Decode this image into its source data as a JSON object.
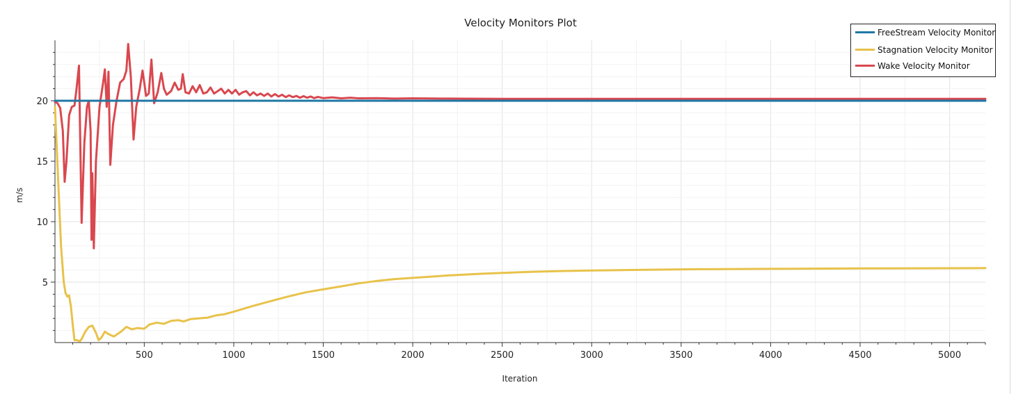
{
  "chart_data": {
    "type": "line",
    "title": "Velocity Monitors Plot",
    "xlabel": "Iteration",
    "ylabel": "m/s",
    "xlim": [
      1,
      5200
    ],
    "ylim": [
      0,
      25
    ],
    "xticks": [
      500,
      1000,
      1500,
      2000,
      2500,
      3000,
      3500,
      4000,
      4500,
      5000
    ],
    "yticks": [
      5,
      10,
      15,
      20
    ],
    "grid": true,
    "legend_position": "top-right",
    "series": [
      {
        "name": "FreeStream Velocity Monitor",
        "color": "#1f77a4",
        "points": [
          [
            1,
            20
          ],
          [
            5200,
            20
          ]
        ]
      },
      {
        "name": "Stagnation Velocity Monitor",
        "color": "#e8c24a",
        "points": [
          [
            1,
            19.5
          ],
          [
            20,
            13
          ],
          [
            35,
            8
          ],
          [
            50,
            5
          ],
          [
            60,
            4.1
          ],
          [
            70,
            3.8
          ],
          [
            80,
            3.9
          ],
          [
            90,
            3
          ],
          [
            100,
            1.5
          ],
          [
            110,
            0.2
          ],
          [
            125,
            0.2
          ],
          [
            140,
            0.1
          ],
          [
            150,
            0.3
          ],
          [
            170,
            0.9
          ],
          [
            190,
            1.3
          ],
          [
            210,
            1.4
          ],
          [
            230,
            0.8
          ],
          [
            245,
            0.2
          ],
          [
            260,
            0.4
          ],
          [
            280,
            0.9
          ],
          [
            300,
            0.7
          ],
          [
            330,
            0.5
          ],
          [
            370,
            0.9
          ],
          [
            400,
            1.3
          ],
          [
            430,
            1.1
          ],
          [
            460,
            1.2
          ],
          [
            500,
            1.15
          ],
          [
            530,
            1.5
          ],
          [
            570,
            1.65
          ],
          [
            610,
            1.55
          ],
          [
            650,
            1.8
          ],
          [
            690,
            1.85
          ],
          [
            720,
            1.75
          ],
          [
            760,
            1.95
          ],
          [
            800,
            2.0
          ],
          [
            850,
            2.05
          ],
          [
            900,
            2.25
          ],
          [
            950,
            2.35
          ],
          [
            1000,
            2.55
          ],
          [
            1100,
            3.0
          ],
          [
            1200,
            3.4
          ],
          [
            1300,
            3.8
          ],
          [
            1400,
            4.15
          ],
          [
            1500,
            4.4
          ],
          [
            1600,
            4.65
          ],
          [
            1700,
            4.9
          ],
          [
            1800,
            5.1
          ],
          [
            1900,
            5.25
          ],
          [
            2000,
            5.35
          ],
          [
            2200,
            5.55
          ],
          [
            2400,
            5.7
          ],
          [
            2600,
            5.82
          ],
          [
            2800,
            5.9
          ],
          [
            3000,
            5.96
          ],
          [
            3300,
            6.02
          ],
          [
            3600,
            6.07
          ],
          [
            4000,
            6.1
          ],
          [
            4500,
            6.13
          ],
          [
            5000,
            6.15
          ],
          [
            5200,
            6.16
          ]
        ]
      },
      {
        "name": "Wake Velocity Monitor",
        "color": "#d9484f",
        "points": [
          [
            1,
            19.9
          ],
          [
            15,
            19.8
          ],
          [
            30,
            19.4
          ],
          [
            45,
            17.5
          ],
          [
            55,
            13.3
          ],
          [
            65,
            15
          ],
          [
            80,
            18.8
          ],
          [
            95,
            19.5
          ],
          [
            110,
            19.6
          ],
          [
            120,
            20.8
          ],
          [
            135,
            22.9
          ],
          [
            150,
            9.9
          ],
          [
            165,
            16.5
          ],
          [
            180,
            19.5
          ],
          [
            190,
            20
          ],
          [
            200,
            17.5
          ],
          [
            205,
            8.5
          ],
          [
            210,
            14
          ],
          [
            218,
            7.8
          ],
          [
            230,
            15
          ],
          [
            250,
            19.5
          ],
          [
            270,
            21.5
          ],
          [
            280,
            22.6
          ],
          [
            290,
            19.5
          ],
          [
            300,
            22.4
          ],
          [
            310,
            14.7
          ],
          [
            325,
            18
          ],
          [
            345,
            20
          ],
          [
            365,
            21.5
          ],
          [
            385,
            21.8
          ],
          [
            400,
            22.5
          ],
          [
            410,
            24.7
          ],
          [
            425,
            22
          ],
          [
            440,
            16.8
          ],
          [
            455,
            19.5
          ],
          [
            475,
            21
          ],
          [
            490,
            22.5
          ],
          [
            500,
            21.5
          ],
          [
            510,
            20.4
          ],
          [
            525,
            20.6
          ],
          [
            540,
            23.4
          ],
          [
            555,
            19.8
          ],
          [
            575,
            20.7
          ],
          [
            595,
            22.3
          ],
          [
            610,
            21
          ],
          [
            625,
            20.5
          ],
          [
            650,
            20.8
          ],
          [
            670,
            21.5
          ],
          [
            690,
            20.9
          ],
          [
            705,
            21
          ],
          [
            715,
            22.2
          ],
          [
            730,
            20.7
          ],
          [
            750,
            20.6
          ],
          [
            770,
            21.2
          ],
          [
            790,
            20.7
          ],
          [
            810,
            21.3
          ],
          [
            830,
            20.6
          ],
          [
            850,
            20.7
          ],
          [
            870,
            21.1
          ],
          [
            890,
            20.6
          ],
          [
            910,
            20.8
          ],
          [
            930,
            21
          ],
          [
            950,
            20.6
          ],
          [
            970,
            20.9
          ],
          [
            990,
            20.6
          ],
          [
            1010,
            20.9
          ],
          [
            1030,
            20.5
          ],
          [
            1050,
            20.7
          ],
          [
            1070,
            20.8
          ],
          [
            1090,
            20.45
          ],
          [
            1110,
            20.7
          ],
          [
            1130,
            20.45
          ],
          [
            1150,
            20.6
          ],
          [
            1170,
            20.4
          ],
          [
            1190,
            20.6
          ],
          [
            1210,
            20.35
          ],
          [
            1230,
            20.55
          ],
          [
            1250,
            20.35
          ],
          [
            1270,
            20.5
          ],
          [
            1290,
            20.3
          ],
          [
            1310,
            20.45
          ],
          [
            1330,
            20.3
          ],
          [
            1350,
            20.4
          ],
          [
            1370,
            20.25
          ],
          [
            1390,
            20.38
          ],
          [
            1410,
            20.25
          ],
          [
            1430,
            20.35
          ],
          [
            1450,
            20.22
          ],
          [
            1470,
            20.32
          ],
          [
            1500,
            20.22
          ],
          [
            1550,
            20.28
          ],
          [
            1600,
            20.2
          ],
          [
            1650,
            20.25
          ],
          [
            1700,
            20.2
          ],
          [
            1800,
            20.22
          ],
          [
            1900,
            20.18
          ],
          [
            2000,
            20.2
          ],
          [
            2200,
            20.18
          ],
          [
            2500,
            20.16
          ],
          [
            3000,
            20.16
          ],
          [
            4000,
            20.16
          ],
          [
            5200,
            20.16
          ]
        ]
      }
    ]
  }
}
